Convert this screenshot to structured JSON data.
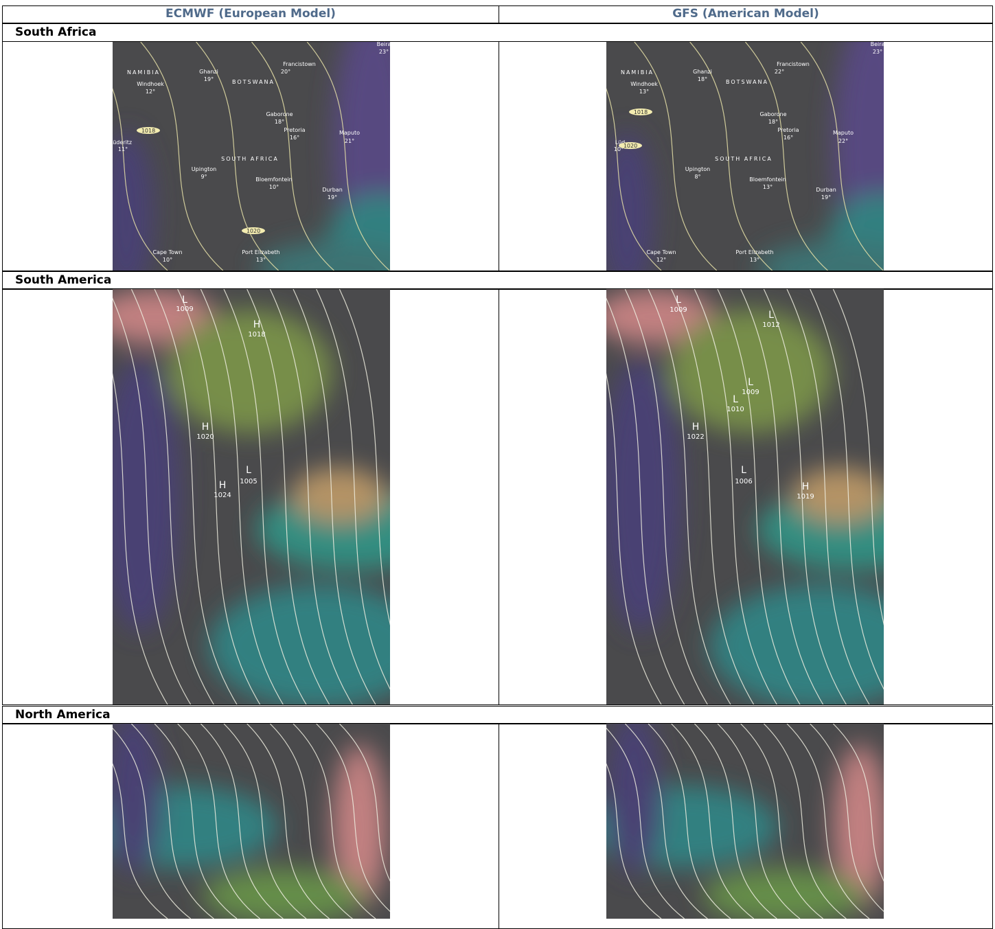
{
  "table": {
    "headers": [
      "ECMWF (European Model)",
      "GFS (American Model)"
    ],
    "sections": [
      {
        "region": "South Africa",
        "maps": [
          {
            "labels": [
              "Beira",
              "23°",
              "NAMIBIA",
              "Windhoek",
              "12°",
              "Ghanzi",
              "19°",
              "BOTSWANA",
              "Francistown",
              "20°",
              "Gaborone",
              "18°",
              "Pretoria",
              "16°",
              "Maputo",
              "21°",
              "Lüderitz",
              "11°",
              "1018",
              "SOUTH AFRICA",
              "Upington",
              "9°",
              "Bloemfontein",
              "10°",
              "Durban",
              "19°",
              "1020",
              "Cape Town",
              "10°",
              "Port Elizabeth",
              "13°"
            ]
          },
          {
            "labels": [
              "Beira",
              "23°",
              "NAMIBIA",
              "Windhoek",
              "13°",
              "Ghanzi",
              "18°",
              "BOTSWANA",
              "Francistown",
              "22°",
              "Gaborone",
              "18°",
              "Pretoria",
              "16°",
              "Maputo",
              "22°",
              "Lüd",
              "10°",
              "1018",
              "SOUTH AFRICA",
              "Upington",
              "8°",
              "Bloemfontein",
              "13°",
              "Durban",
              "19°",
              "1020",
              "Cape Town",
              "12°",
              "Port Elizabeth",
              "13°"
            ]
          }
        ]
      },
      {
        "region": "South America",
        "maps": [
          {
            "labels": [
              "L",
              "1009",
              "H",
              "1018",
              "H",
              "1020",
              "H",
              "1024",
              "L",
              "1005"
            ]
          },
          {
            "labels": [
              "L",
              "1009",
              "L",
              "1012",
              "L",
              "1009",
              "L",
              "1010",
              "H",
              "1022",
              "L",
              "1006",
              "H",
              "1019"
            ]
          }
        ]
      },
      {
        "region": "North America"
      }
    ]
  }
}
